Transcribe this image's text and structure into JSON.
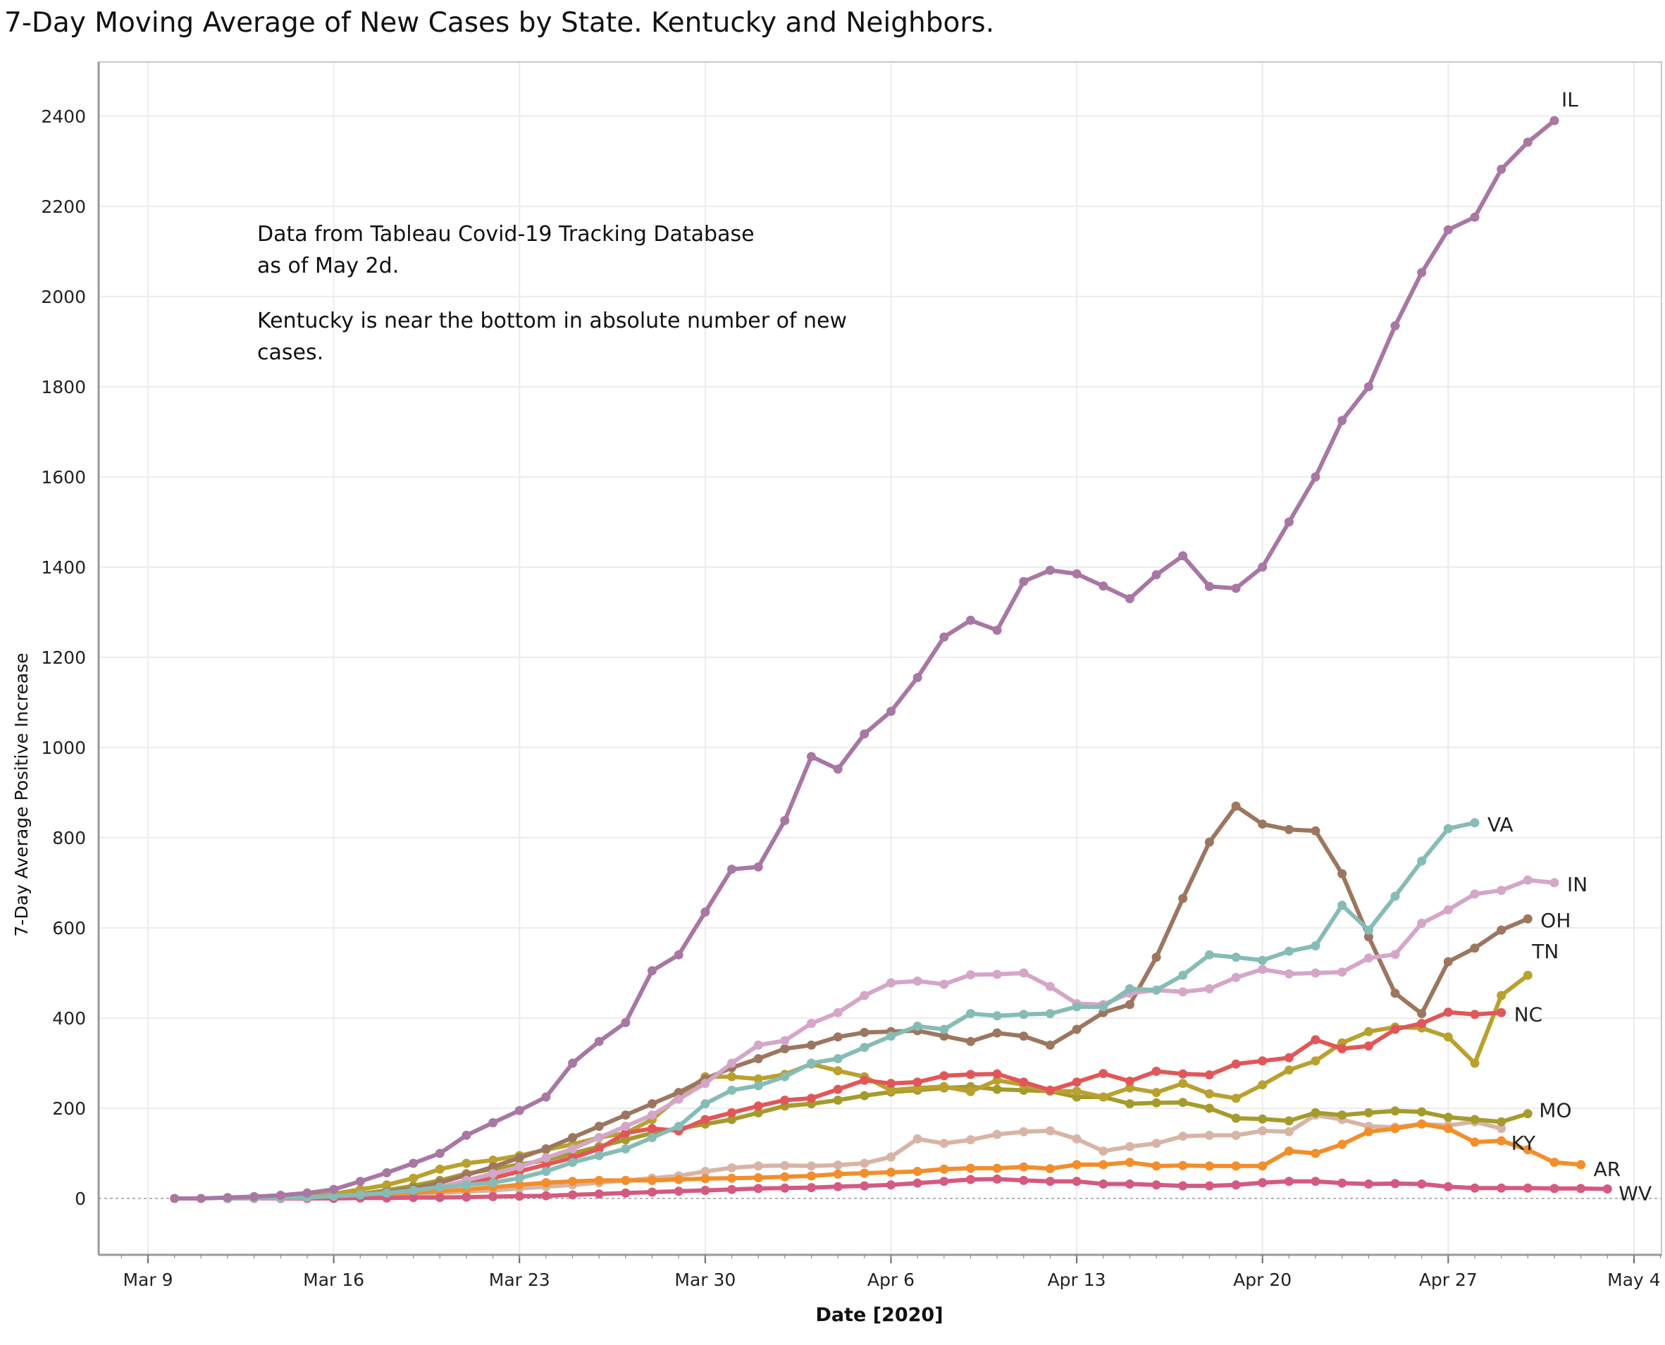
{
  "title": "7-Day Moving Average of New Cases by State.  Kentucky and Neighbors.",
  "annotation": {
    "line1": "Data from Tableau Covid-19 Tracking Database",
    "line2": "as of  May 2d.",
    "line3": "Kentucky is near the bottom in absolute number of new",
    "line4": "cases."
  },
  "chart_data": {
    "type": "line",
    "xlabel": "Date [2020]",
    "ylabel": "7-Day Average Positive Increase",
    "x_start": "Mar 10",
    "ylim": [
      -125,
      2520
    ],
    "y_ticks": [
      0,
      200,
      400,
      600,
      800,
      1000,
      1200,
      1400,
      1600,
      1800,
      2000,
      2200,
      2400
    ],
    "x_tick_labels": [
      "Mar 9",
      "Mar 16",
      "Mar 23",
      "Mar 30",
      "Apr 6",
      "Apr 13",
      "Apr 20",
      "Apr 27",
      "May 4"
    ],
    "grid": true,
    "legend": "line-end labels",
    "series": [
      {
        "name": "IL",
        "color": "#a877a3",
        "start": "Mar 10",
        "values": [
          0,
          0,
          2,
          4,
          7,
          12,
          20,
          38,
          57,
          78,
          100,
          140,
          168,
          195,
          225,
          300,
          348,
          390,
          505,
          540,
          635,
          730,
          735,
          838,
          980,
          952,
          1030,
          1080,
          1155,
          1245,
          1282,
          1260,
          1368,
          1393,
          1385,
          1358,
          1330,
          1383,
          1425,
          1357,
          1353,
          1400,
          1500,
          1600,
          1725,
          1800,
          1935,
          2053,
          2148,
          2176,
          2282,
          2342,
          2390
        ]
      },
      {
        "name": "VA",
        "color": "#86bcb6",
        "start": "Mar 12",
        "values": [
          0,
          1,
          2,
          3,
          5,
          8,
          12,
          18,
          25,
          30,
          35,
          45,
          60,
          80,
          95,
          110,
          135,
          160,
          210,
          240,
          250,
          270,
          300,
          310,
          335,
          360,
          382,
          375,
          410,
          405,
          408,
          410,
          425,
          425,
          465,
          462,
          495,
          540,
          535,
          528,
          548,
          560,
          650,
          595,
          670,
          748,
          820,
          833
        ]
      },
      {
        "name": "IN",
        "color": "#d4a6c8",
        "start": "Mar 12",
        "values": [
          0,
          0,
          1,
          2,
          5,
          8,
          12,
          18,
          25,
          40,
          55,
          70,
          90,
          110,
          135,
          160,
          185,
          220,
          255,
          300,
          340,
          350,
          388,
          412,
          450,
          478,
          482,
          475,
          496,
          497,
          500,
          470,
          432,
          430,
          455,
          462,
          458,
          465,
          490,
          508,
          498,
          500,
          502,
          533,
          541,
          610,
          640,
          675,
          683,
          706,
          700
        ]
      },
      {
        "name": "OH",
        "color": "#9d7660",
        "start": "Mar 12",
        "values": [
          0,
          1,
          2,
          3,
          5,
          8,
          14,
          22,
          35,
          52,
          70,
          90,
          110,
          135,
          160,
          185,
          210,
          235,
          265,
          290,
          310,
          332,
          340,
          358,
          368,
          370,
          372,
          360,
          348,
          367,
          360,
          340,
          375,
          412,
          430,
          535,
          665,
          790,
          870,
          830,
          818,
          815,
          720,
          580,
          455,
          410,
          525,
          555,
          595,
          620
        ]
      },
      {
        "name": "TN",
        "color": "#b9a12f",
        "start": "Mar 12",
        "values": [
          0,
          1,
          2,
          5,
          10,
          20,
          30,
          45,
          65,
          78,
          85,
          95,
          108,
          120,
          135,
          145,
          175,
          225,
          270,
          270,
          265,
          275,
          298,
          283,
          270,
          240,
          245,
          248,
          237,
          262,
          252,
          238,
          238,
          225,
          245,
          235,
          255,
          232,
          222,
          252,
          285,
          305,
          345,
          370,
          380,
          378,
          358,
          300,
          450,
          495
        ]
      },
      {
        "name": "NC",
        "color": "#e15759",
        "start": "Mar 12",
        "values": [
          0,
          1,
          2,
          3,
          5,
          8,
          12,
          18,
          25,
          35,
          45,
          60,
          75,
          90,
          110,
          145,
          155,
          150,
          175,
          190,
          205,
          218,
          222,
          242,
          262,
          255,
          258,
          272,
          275,
          276,
          258,
          240,
          258,
          277,
          260,
          282,
          276,
          274,
          298,
          305,
          312,
          352,
          332,
          338,
          375,
          388,
          413,
          408,
          412
        ]
      },
      {
        "name": "MO",
        "color": "#a59b2d",
        "start": "Mar 12",
        "values": [
          0,
          1,
          2,
          3,
          5,
          10,
          18,
          28,
          40,
          55,
          65,
          75,
          85,
          100,
          115,
          130,
          145,
          155,
          165,
          175,
          190,
          205,
          210,
          218,
          228,
          236,
          240,
          245,
          248,
          242,
          240,
          238,
          225,
          225,
          210,
          212,
          213,
          200,
          178,
          176,
          172,
          190,
          185,
          190,
          194,
          192,
          180,
          175,
          170,
          188
        ]
      },
      {
        "name": "KY",
        "color": "#d7b5a6",
        "start": "Mar 12",
        "values": [
          0,
          0,
          1,
          2,
          3,
          5,
          7,
          9,
          12,
          15,
          18,
          22,
          26,
          30,
          35,
          40,
          45,
          50,
          60,
          68,
          72,
          73,
          72,
          74,
          78,
          92,
          132,
          122,
          130,
          142,
          148,
          150,
          132,
          105,
          115,
          122,
          138,
          140,
          140,
          150,
          148,
          185,
          175,
          160,
          158,
          165,
          162,
          170,
          155
        ]
      },
      {
        "name": "AR",
        "color": "#f28e2b",
        "start": "Mar 12",
        "values": [
          0,
          0,
          1,
          2,
          3,
          5,
          8,
          12,
          16,
          20,
          25,
          30,
          35,
          38,
          40,
          40,
          40,
          42,
          44,
          45,
          46,
          48,
          50,
          54,
          56,
          58,
          60,
          65,
          67,
          67,
          70,
          66,
          75,
          75,
          80,
          72,
          73,
          72,
          72,
          72,
          105,
          100,
          120,
          148,
          155,
          165,
          155,
          125,
          128,
          108,
          80,
          75
        ]
      },
      {
        "name": "WV",
        "color": "#d45a7f",
        "start": "Mar 12",
        "values": [
          0,
          0,
          0,
          0,
          0,
          1,
          1,
          2,
          2,
          3,
          4,
          5,
          6,
          8,
          10,
          12,
          14,
          16,
          18,
          20,
          22,
          23,
          24,
          26,
          28,
          30,
          34,
          38,
          42,
          43,
          40,
          38,
          38,
          32,
          32,
          30,
          28,
          28,
          30,
          35,
          38,
          38,
          34,
          32,
          33,
          32,
          26,
          23,
          23,
          23,
          22,
          22,
          21
        ]
      }
    ]
  }
}
